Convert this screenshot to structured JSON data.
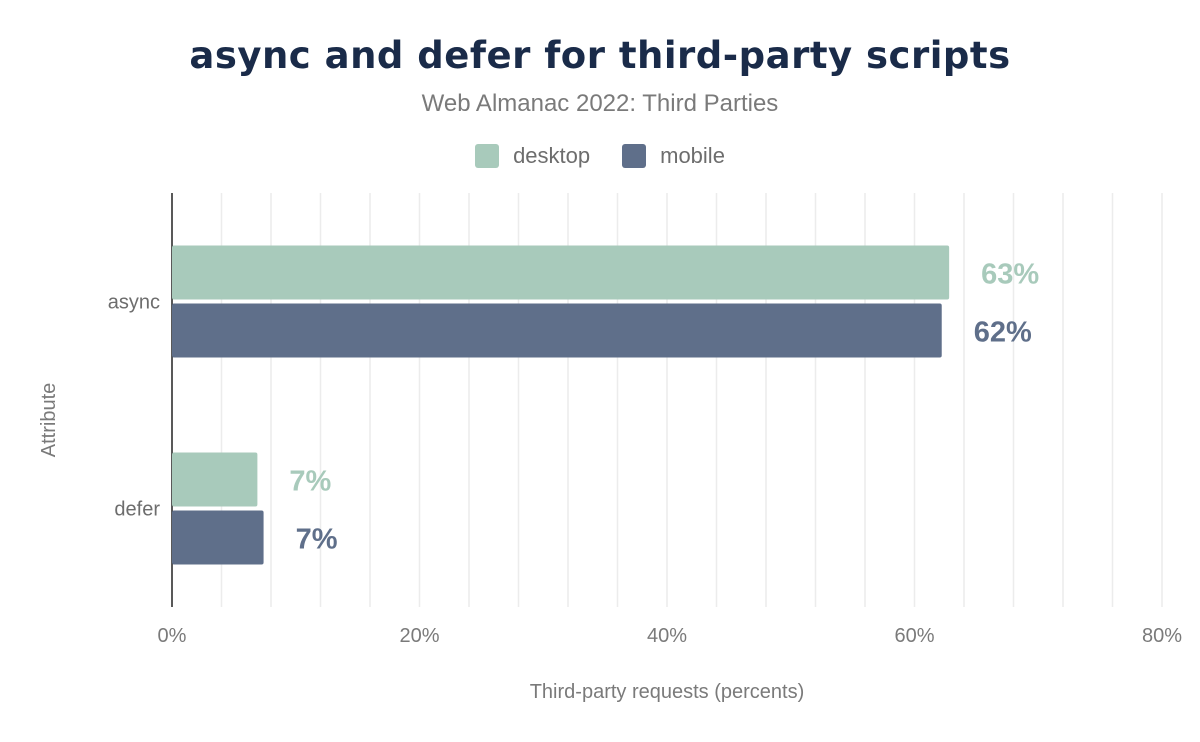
{
  "chart_data": {
    "type": "bar",
    "orientation": "horizontal",
    "title": "async and defer for third-party scripts",
    "subtitle": "Web Almanac 2022: Third Parties",
    "xlabel": "Third-party requests (percents)",
    "ylabel": "Attribute",
    "categories": [
      "async",
      "defer"
    ],
    "series": [
      {
        "name": "desktop",
        "color": "#a8cabb",
        "values": [
          62.8,
          6.9
        ],
        "labels": [
          "63%",
          "7%"
        ]
      },
      {
        "name": "mobile",
        "color": "#5f6f8a",
        "values": [
          62.2,
          7.4
        ],
        "labels": [
          "62%",
          "7%"
        ]
      }
    ],
    "xlim": [
      0,
      80
    ],
    "xticks": [
      "0%",
      "20%",
      "40%",
      "60%",
      "80%"
    ],
    "grid": true,
    "legend": "top-center"
  }
}
